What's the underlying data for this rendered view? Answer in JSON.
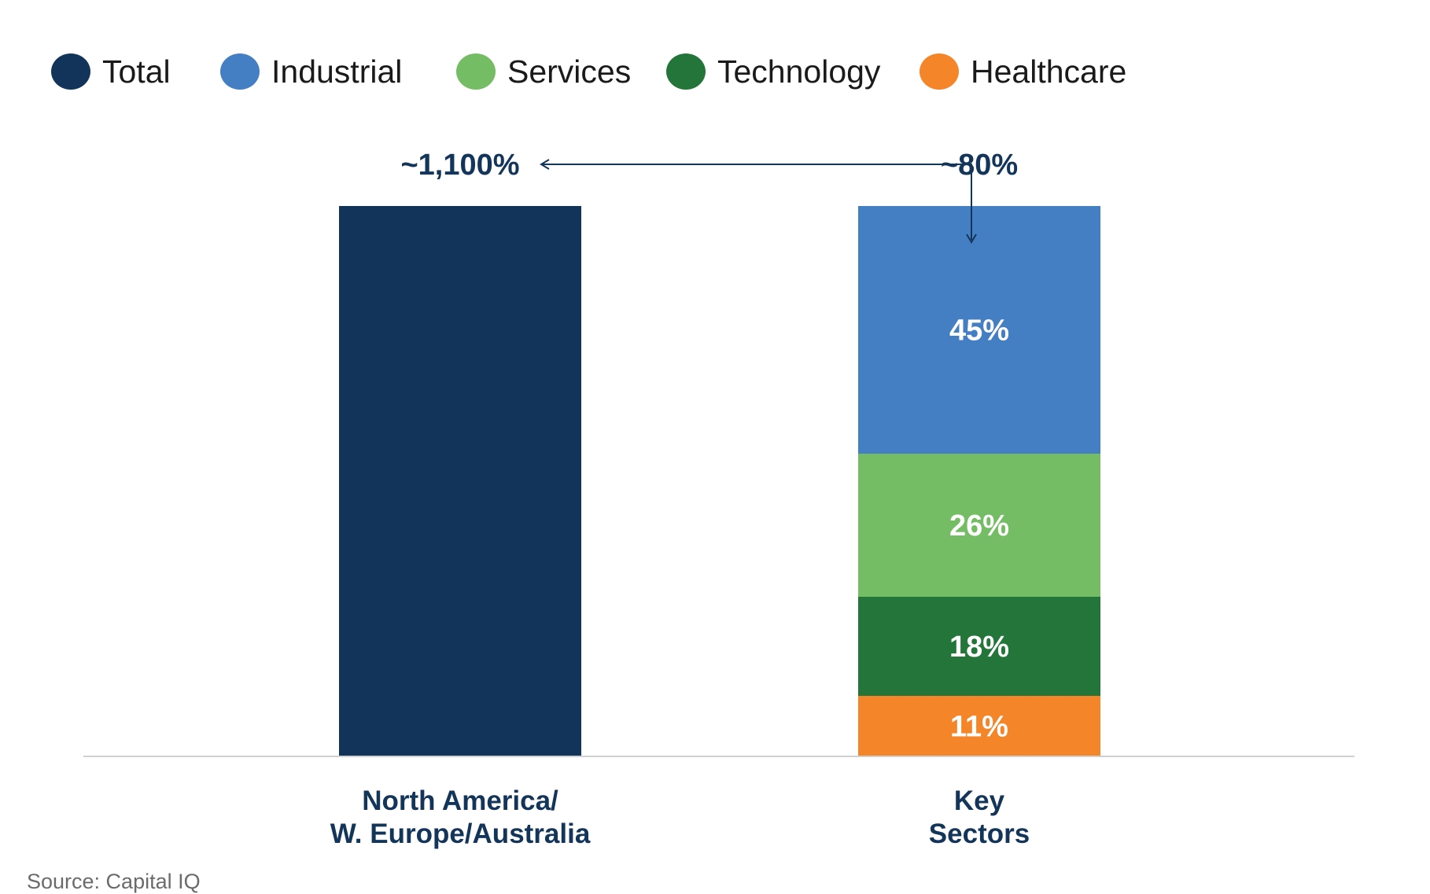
{
  "colors": {
    "total": "#13345a",
    "industrial": "#457fc3",
    "services": "#74bd64",
    "technology": "#23753a",
    "healthcare": "#f58529",
    "text_dark": "#14355a",
    "axis": "#d0d0d0"
  },
  "legend": [
    {
      "label": "Total",
      "color": "#13345a"
    },
    {
      "label": "Industrial",
      "color": "#457fc3"
    },
    {
      "label": "Services",
      "color": "#74bd64"
    },
    {
      "label": "Technology",
      "color": "#23753a"
    },
    {
      "label": "Healthcare",
      "color": "#f58529"
    }
  ],
  "chart_data": {
    "type": "bar",
    "stacked": true,
    "title": "",
    "xlabel": "",
    "ylabel": "",
    "legend_position": "top-left",
    "grid": false,
    "categories": [
      {
        "line1": "North America/",
        "line2": "W. Europe/Australia",
        "total_label": "~1,100%"
      },
      {
        "line1": "Key",
        "line2": "Sectors",
        "total_label": "~80%"
      }
    ],
    "series": [
      {
        "name": "Total",
        "values": [
          100,
          null
        ],
        "labels": [
          "",
          ""
        ]
      },
      {
        "name": "Healthcare",
        "values": [
          null,
          11
        ],
        "labels": [
          "",
          "11%"
        ]
      },
      {
        "name": "Technology",
        "values": [
          null,
          18
        ],
        "labels": [
          "",
          "18%"
        ]
      },
      {
        "name": "Services",
        "values": [
          null,
          26
        ],
        "labels": [
          "",
          "26%"
        ]
      },
      {
        "name": "Industrial",
        "values": [
          null,
          45
        ],
        "labels": [
          "",
          "45%"
        ]
      }
    ],
    "ylim": [
      0,
      100
    ],
    "annotation": {
      "type": "arrow",
      "from": "Key Sectors",
      "to": "North America/W. Europe/Australia"
    }
  },
  "source": "Source: Capital IQ"
}
